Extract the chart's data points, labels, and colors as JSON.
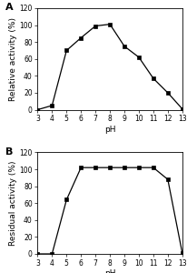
{
  "panel_A": {
    "label": "A",
    "x": [
      3,
      4,
      5,
      6,
      7,
      8,
      9,
      10,
      11,
      12,
      13
    ],
    "y": [
      0,
      5,
      70,
      85,
      99,
      101,
      75,
      62,
      37,
      20,
      1
    ],
    "ylabel": "Relative activity (%)",
    "xlabel": "pH",
    "ylim": [
      0,
      120
    ],
    "yticks": [
      0,
      20,
      40,
      60,
      80,
      100,
      120
    ],
    "xticks": [
      3,
      4,
      5,
      6,
      7,
      8,
      9,
      10,
      11,
      12,
      13
    ]
  },
  "panel_B": {
    "label": "B",
    "x": [
      3,
      4,
      5,
      6,
      7,
      8,
      9,
      10,
      11,
      12,
      13
    ],
    "y": [
      0,
      0,
      64,
      102,
      102,
      102,
      102,
      102,
      102,
      88,
      1
    ],
    "ylabel": "Residual activity (%)",
    "xlabel": "pH",
    "ylim": [
      0,
      120
    ],
    "yticks": [
      0,
      20,
      40,
      60,
      80,
      100,
      120
    ],
    "xticks": [
      3,
      4,
      5,
      6,
      7,
      8,
      9,
      10,
      11,
      12,
      13
    ]
  },
  "line_color": "#000000",
  "marker": "s",
  "marker_size": 3.5,
  "marker_facecolor": "#000000",
  "linewidth": 0.9,
  "tick_fontsize": 5.5,
  "label_fontsize": 6.5,
  "panel_label_fontsize": 8,
  "bg_color": "#ffffff"
}
